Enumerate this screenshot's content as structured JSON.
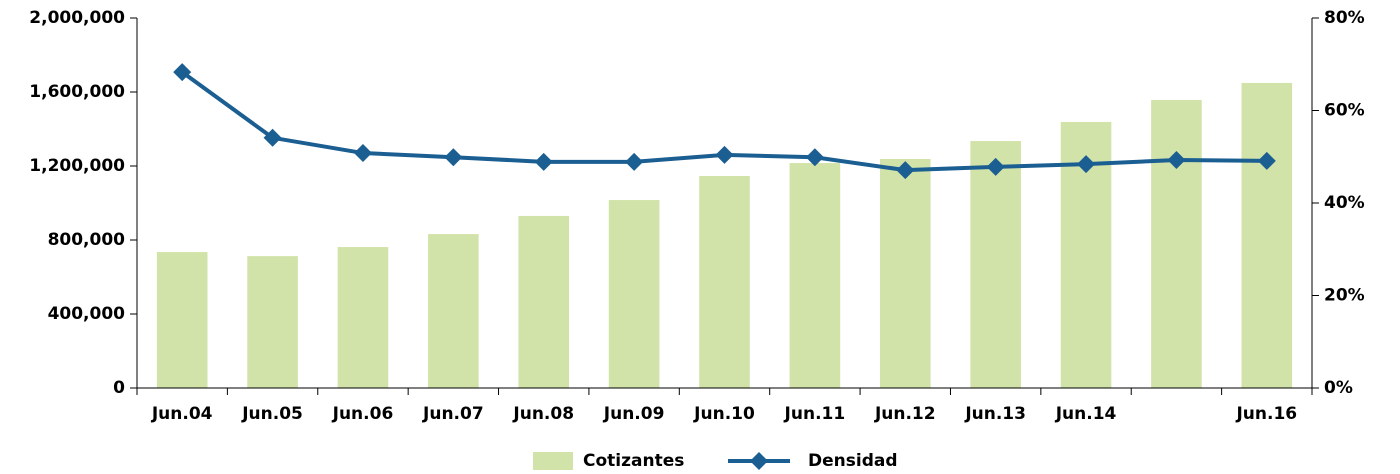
{
  "chart_data": {
    "type": "bar_line",
    "categories": [
      "Jun.04",
      "Jun.05",
      "Jun.06",
      "Jun.07",
      "Jun.08",
      "Jun.09",
      "Jun.10",
      "Jun.11",
      "Jun.12",
      "Jun.13",
      "Jun.14",
      null,
      "Jun.16"
    ],
    "series": [
      {
        "name": "Cotizantes",
        "type": "bar",
        "color": "#d2e3aa",
        "values": [
          735000,
          713000,
          762000,
          832000,
          930000,
          1016000,
          1146000,
          1216000,
          1238000,
          1335000,
          1438000,
          1557000,
          1649000
        ]
      },
      {
        "name": "Densidad",
        "type": "line",
        "axis": "y2",
        "color": "#1b5e92",
        "values": [
          68.3,
          54.1,
          50.8,
          49.9,
          48.9,
          48.9,
          50.4,
          49.9,
          47.1,
          47.8,
          48.4,
          49.3,
          49.1
        ]
      }
    ],
    "ylim": [
      0,
      2000000
    ],
    "yticks": [
      0,
      {
        "value": 400000,
        "label": "400,000"
      },
      {
        "value": 800000,
        "label": "800,000"
      },
      {
        "value": 1200000,
        "label": "1,200,000"
      },
      {
        "value": 1600000,
        "label": "1,600,000"
      },
      {
        "value": 2000000,
        "label": "2,000,000"
      }
    ],
    "y2lim": [
      0,
      80
    ],
    "y2ticks": [
      {
        "value": 0,
        "label": "0%"
      },
      {
        "value": 20,
        "label": "20%"
      },
      {
        "value": 40,
        "label": "40%"
      },
      {
        "value": 60,
        "label": "60%"
      },
      {
        "value": 80,
        "label": "80%"
      }
    ],
    "legend": "bottom"
  }
}
